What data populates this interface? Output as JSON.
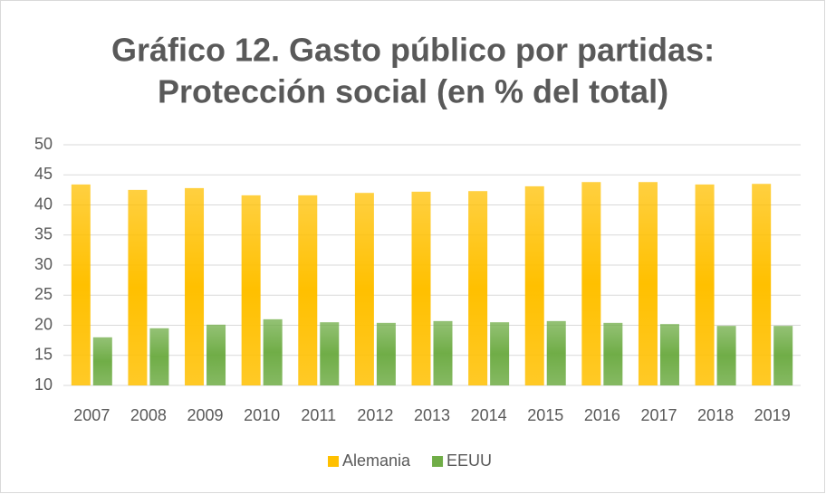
{
  "chart_data": {
    "type": "bar",
    "title": [
      "Gráfico 12. Gasto público por partidas:",
      "Protección social (en % del total)"
    ],
    "categories": [
      "2007",
      "2008",
      "2009",
      "2010",
      "2011",
      "2012",
      "2013",
      "2014",
      "2015",
      "2016",
      "2017",
      "2018",
      "2019"
    ],
    "series": [
      {
        "name": "Alemania",
        "color": "#ffc000",
        "values": [
          43.4,
          42.5,
          42.8,
          41.6,
          41.6,
          42.0,
          42.2,
          42.3,
          43.1,
          43.8,
          43.8,
          43.4,
          43.5
        ]
      },
      {
        "name": "EEUU",
        "color": "#70ad47",
        "values": [
          18.0,
          19.5,
          20.1,
          21.0,
          20.5,
          20.4,
          20.7,
          20.5,
          20.7,
          20.4,
          20.2,
          19.9,
          19.9
        ]
      }
    ],
    "ylim": [
      10,
      50
    ],
    "yticks": [
      10,
      15,
      20,
      25,
      30,
      35,
      40,
      45,
      50
    ],
    "grid": true,
    "legend": "bottom"
  }
}
